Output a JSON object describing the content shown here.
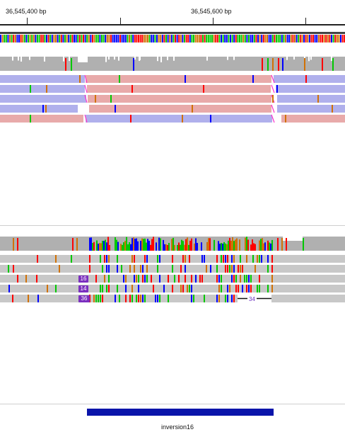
{
  "ruler": {
    "left_label": "36,545,400 bp",
    "right_label": "36,545,600 bp"
  },
  "alignments_bottom": {
    "insertion_badges": [
      "16",
      "14",
      "36"
    ],
    "deletion_gap_label": "34"
  },
  "feature_track": {
    "feature_name": "inversion16"
  },
  "colors": {
    "background": "#ffffff",
    "read_default": "#c8c8c8",
    "coverage_gray": "#b0b0b0",
    "pair_blue": "#b0b0ec",
    "pair_pink": "#e8aaaa",
    "split_marker": "#ff33cc",
    "insertion_purple": "#7b2fbf",
    "feature_blue": "#0a14aa",
    "base_A": "#00c800",
    "base_C": "#0000ff",
    "base_G": "#d17105",
    "base_T": "#ff0000"
  }
}
